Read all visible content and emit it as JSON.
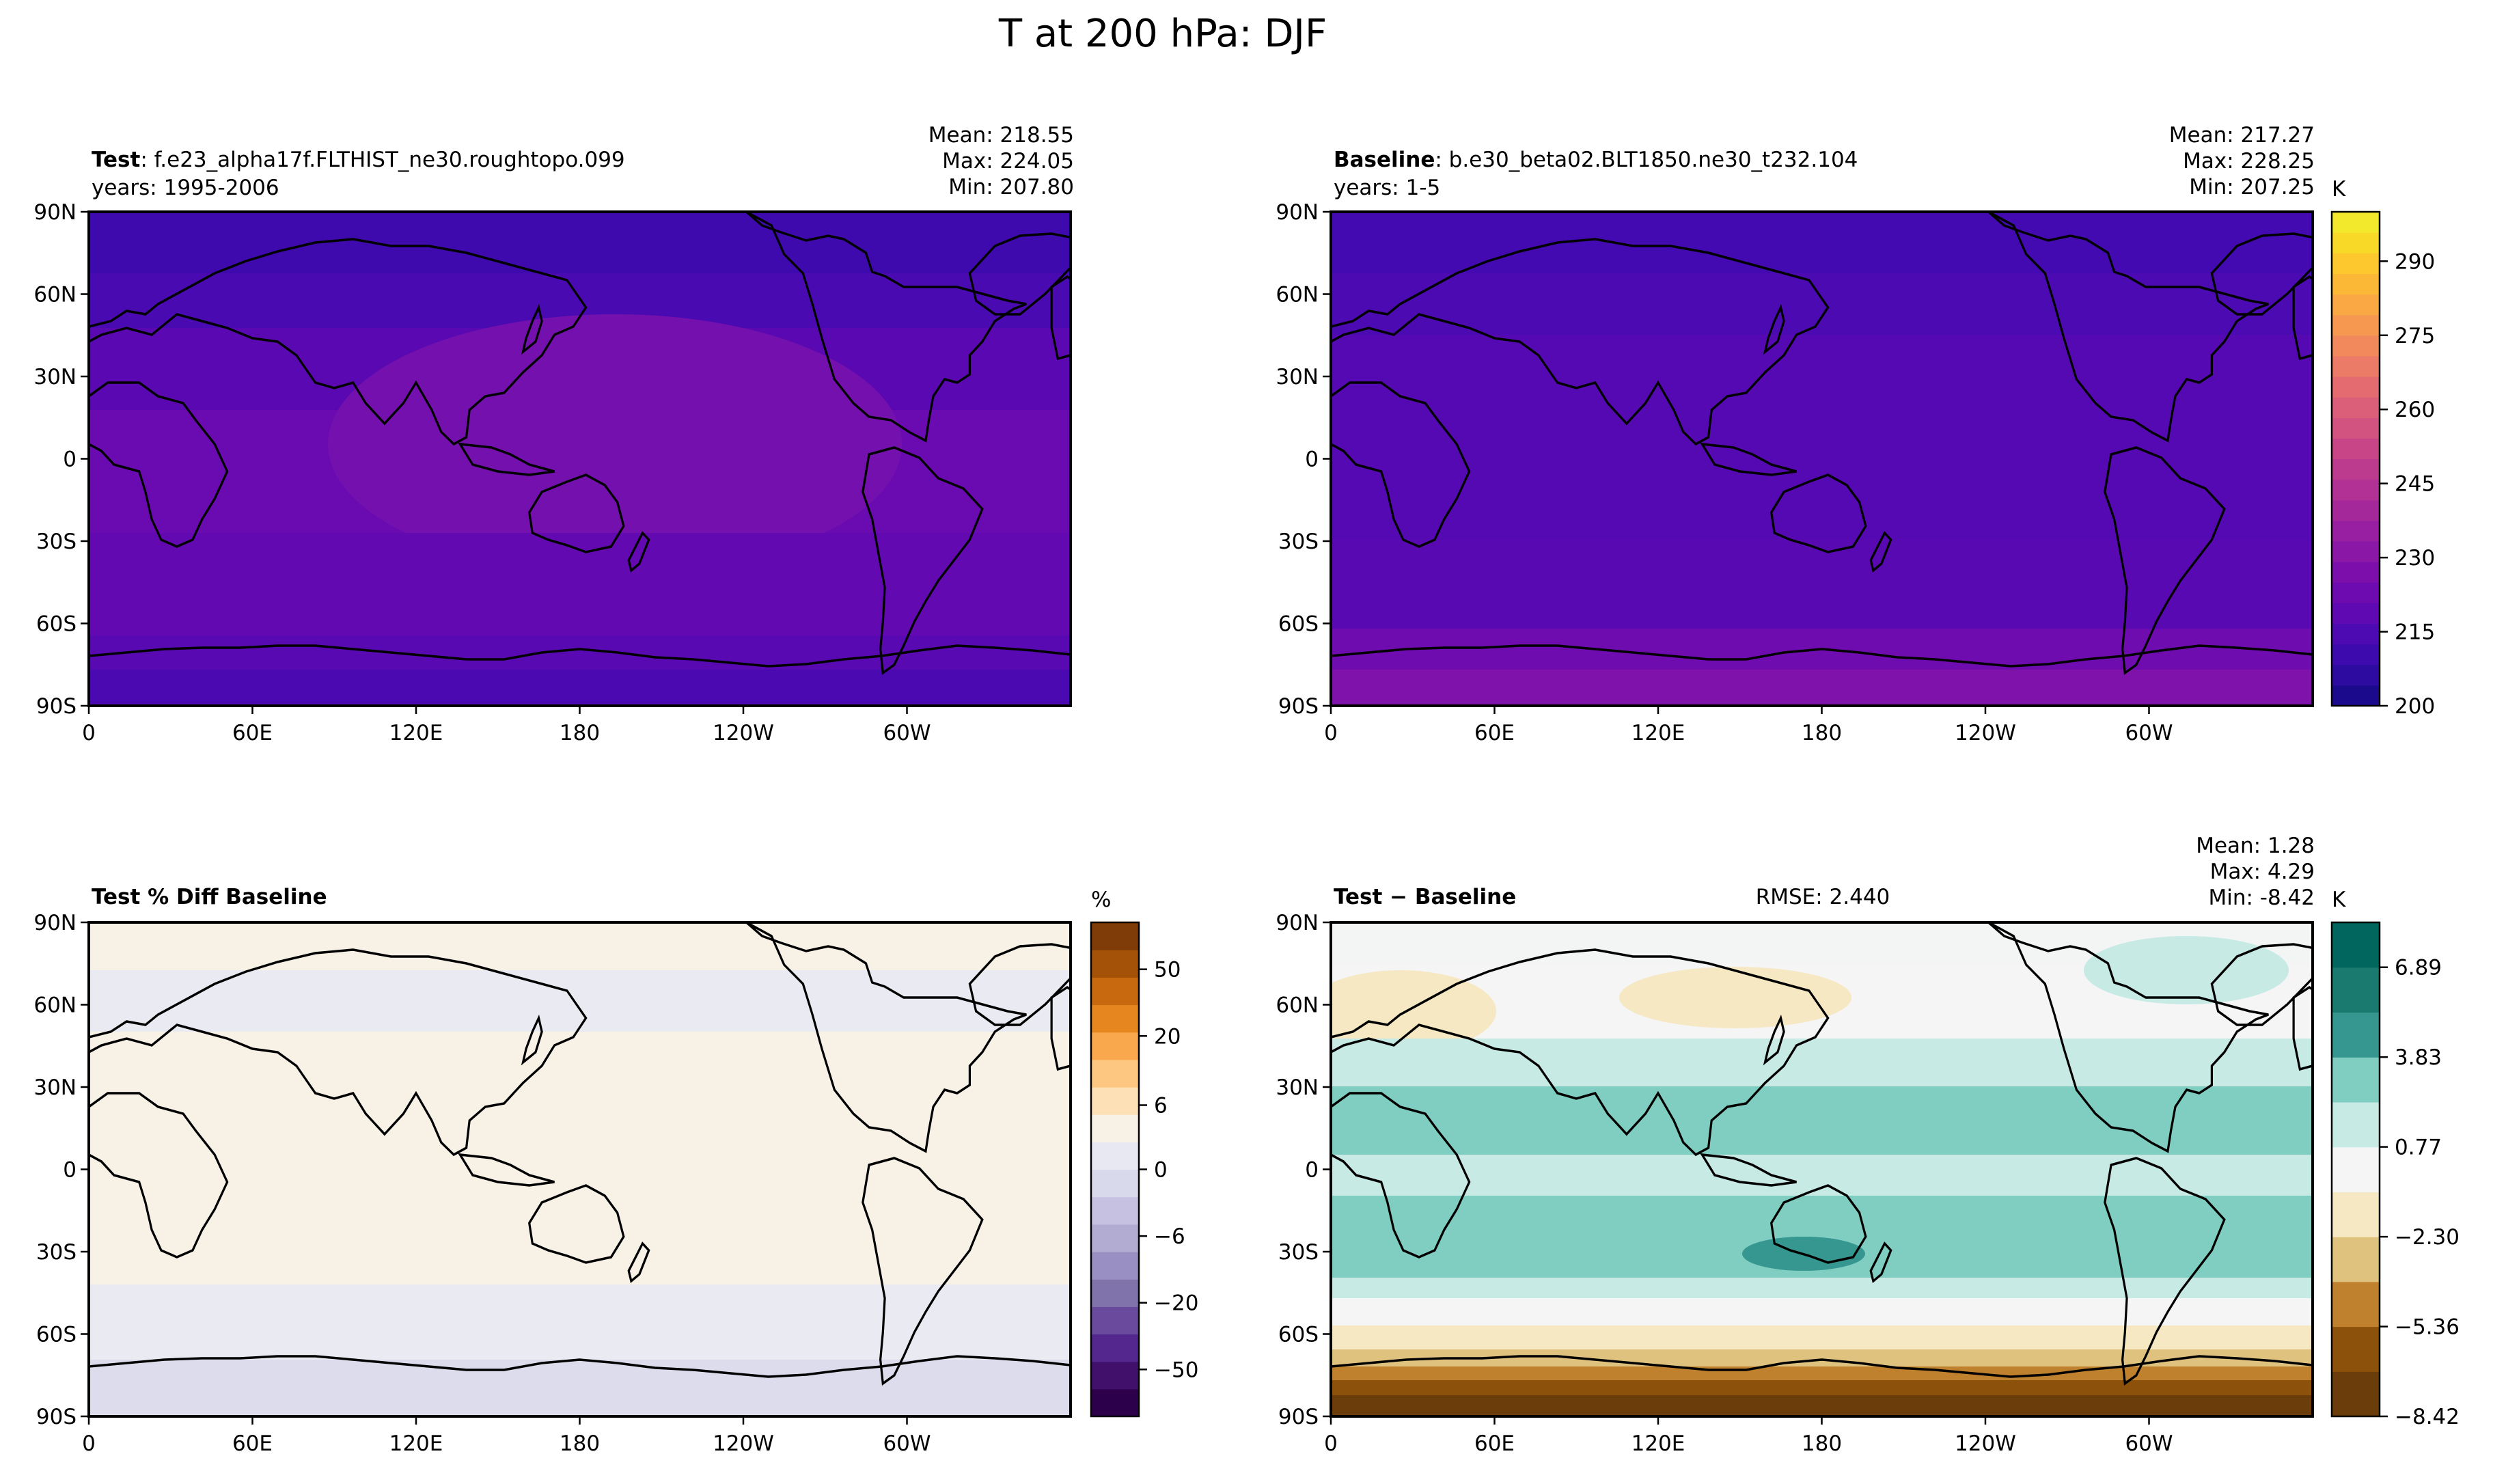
{
  "figure": {
    "title": "T at 200 hPa: DJF"
  },
  "colors": {
    "temp_scale": [
      "#1c0a8c",
      "#2d0aa0",
      "#3d0aad",
      "#4e0ab2",
      "#5e09b2",
      "#6d0ab0",
      "#7c0fab",
      "#8a17a6",
      "#981fa1",
      "#a5289b",
      "#b23195",
      "#bd3b8e",
      "#c84687",
      "#d25280",
      "#db5f78",
      "#e46c70",
      "#eb7a66",
      "#f1895c",
      "#f69850",
      "#f9a843",
      "#fbb837",
      "#fcc82d",
      "#f9d928",
      "#f3e92c"
    ],
    "pct_scale": [
      "#2d004b",
      "#41106b",
      "#54278f",
      "#6a4a9c",
      "#8073ac",
      "#9a8fc2",
      "#b2abd2",
      "#c6c1e0",
      "#d8daeb",
      "#e8e8f2",
      "#f7f1e6",
      "#fde0b6",
      "#fdc681",
      "#f9a84d",
      "#e6861e",
      "#c8690f",
      "#a35208",
      "#7f3b08"
    ],
    "diff_scale": [
      "#54300a",
      "#8c510a",
      "#bf812d",
      "#dfc27d",
      "#f6e8c3",
      "#f5f5f5",
      "#c7eae5",
      "#80cdc1",
      "#35978f",
      "#01665e",
      "#003c30"
    ],
    "land_line": "#000000"
  },
  "panels": {
    "test": {
      "label_bold": "Test",
      "label_text": ": f.e23_alpha17f.FLTHIST_ne30.roughtopo.099",
      "years": "years: 1995-2006",
      "mean": "Mean: 218.55",
      "max": "Max: 224.05",
      "min": "Min: 207.80"
    },
    "baseline": {
      "label_bold": "Baseline",
      "label_text": ": b.e30_beta02.BLT1850.ne30_t232.104",
      "years": "years: 1-5",
      "mean": "Mean: 217.27",
      "max": "Max: 228.25",
      "min": "Min: 207.25"
    },
    "pctdiff": {
      "label_bold": "Test % Diff Baseline"
    },
    "diff": {
      "label_bold": "Test",
      "label_text": " − Baseline",
      "rmse": "RMSE: 2.440",
      "mean": "Mean:  1.28",
      "max": "Max:  4.29",
      "min": "Min: -8.42"
    }
  },
  "colorbars": {
    "temp": {
      "unit": "K",
      "ticks": [
        "200",
        "215",
        "230",
        "245",
        "260",
        "275",
        "290"
      ]
    },
    "pct": {
      "unit": "%",
      "ticks": [
        "50",
        "20",
        "6",
        "0",
        "−6",
        "−20",
        "−50"
      ]
    },
    "diff": {
      "unit": "K",
      "ticks": [
        "6.89",
        "3.83",
        "0.77",
        "−2.30",
        "−5.36",
        "−8.42"
      ]
    }
  },
  "chart_data": [
    {
      "type": "heatmap",
      "panel": "test",
      "title": "Test : f.e23_alpha17f.FLTHIST_ne30.roughtopo.099",
      "x_ticks": [
        "0",
        "60E",
        "120E",
        "180",
        "120W",
        "60W"
      ],
      "y_ticks": [
        "90N",
        "60N",
        "30N",
        "0",
        "30S",
        "60S",
        "90S"
      ],
      "xlim": [
        0,
        360
      ],
      "ylim": [
        -90,
        90
      ],
      "zlim": [
        200,
        300
      ],
      "unit": "K",
      "zonal_mean_profile": {
        "lat": [
          90,
          60,
          30,
          0,
          -30,
          -60,
          -90
        ],
        "value": [
          208,
          212,
          221,
          223,
          221,
          220,
          213
        ]
      },
      "stats": {
        "mean": 218.55,
        "max": 224.05,
        "min": 207.8
      }
    },
    {
      "type": "heatmap",
      "panel": "baseline",
      "title": "Baseline : b.e30_beta02.BLT1850.ne30_t232.104",
      "x_ticks": [
        "0",
        "60E",
        "120E",
        "180",
        "120W",
        "60W"
      ],
      "y_ticks": [
        "90N",
        "60N",
        "30N",
        "0",
        "30S",
        "60S",
        "90S"
      ],
      "xlim": [
        0,
        360
      ],
      "ylim": [
        -90,
        90
      ],
      "zlim": [
        200,
        300
      ],
      "unit": "K",
      "zonal_mean_profile": {
        "lat": [
          90,
          60,
          30,
          0,
          -30,
          -60,
          -90
        ],
        "value": [
          210,
          212,
          217,
          218,
          216,
          219,
          226
        ]
      },
      "stats": {
        "mean": 217.27,
        "max": 228.25,
        "min": 207.25
      }
    },
    {
      "type": "heatmap",
      "panel": "pctdiff",
      "title": "Test % Diff Baseline",
      "x_ticks": [
        "0",
        "60E",
        "120E",
        "180",
        "120W",
        "60W"
      ],
      "y_ticks": [
        "90N",
        "60N",
        "30N",
        "0",
        "30S",
        "60S",
        "90S"
      ],
      "xlim": [
        0,
        360
      ],
      "ylim": [
        -90,
        90
      ],
      "colorbar_ticks": [
        50,
        20,
        6,
        0,
        -6,
        -20,
        -50
      ],
      "unit": "%",
      "zonal_mean_profile": {
        "lat": [
          90,
          60,
          30,
          0,
          -30,
          -60,
          -90
        ],
        "value": [
          0.5,
          -0.5,
          1,
          1.5,
          1,
          -0.5,
          -3
        ]
      }
    },
    {
      "type": "heatmap",
      "panel": "diff",
      "title": "Test − Baseline",
      "x_ticks": [
        "0",
        "60E",
        "120E",
        "180",
        "120W",
        "60W"
      ],
      "y_ticks": [
        "90N",
        "60N",
        "30N",
        "0",
        "30S",
        "60S",
        "90S"
      ],
      "xlim": [
        0,
        360
      ],
      "ylim": [
        -90,
        90
      ],
      "levels": [
        -8.42,
        -6.89,
        -5.36,
        -3.83,
        -2.3,
        -0.77,
        0.77,
        2.3,
        3.83,
        5.36,
        6.89,
        8.42
      ],
      "colorbar_ticks": [
        6.89,
        3.83,
        0.77,
        -2.3,
        -5.36,
        -8.42
      ],
      "unit": "K",
      "zonal_mean_profile": {
        "lat": [
          90,
          60,
          30,
          0,
          -30,
          -60,
          -90
        ],
        "value": [
          0.5,
          1.5,
          3,
          2,
          3,
          0,
          -8
        ]
      },
      "stats": {
        "rmse": 2.44,
        "mean": 1.28,
        "max": 4.29,
        "min": -8.42
      }
    }
  ]
}
